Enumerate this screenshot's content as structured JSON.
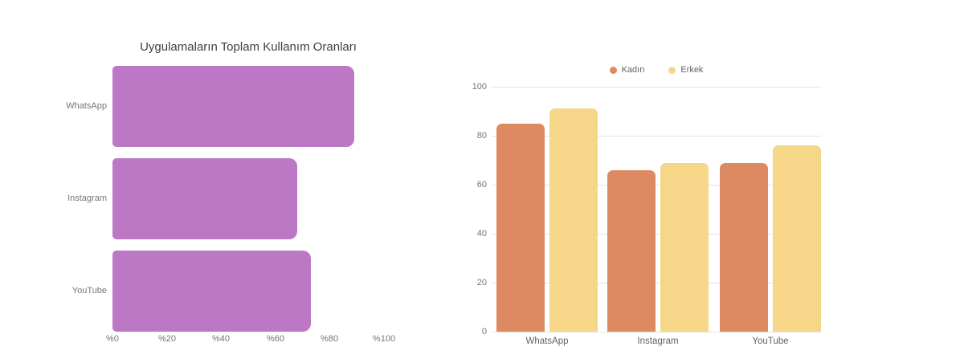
{
  "chart_data": [
    {
      "type": "bar",
      "orientation": "horizontal",
      "title": "Uygulamaların Toplam Kullanım Oranları",
      "categories": [
        "WhatsApp",
        "Instagram",
        "YouTube"
      ],
      "values": [
        89,
        68,
        73
      ],
      "unit": "percent",
      "x_tick_labels": [
        "%0",
        "%20",
        "%40",
        "%60",
        "%80",
        "%100"
      ],
      "xlim": [
        0,
        100
      ],
      "bar_color": "#bd78c5",
      "grid": false,
      "legend_position": "none"
    },
    {
      "type": "bar",
      "orientation": "vertical",
      "grouped": true,
      "categories": [
        "WhatsApp",
        "Instagram",
        "YouTube"
      ],
      "series": [
        {
          "name": "Kadın",
          "color": "#dd8a63",
          "values": [
            85,
            66,
            69
          ]
        },
        {
          "name": "Erkek",
          "color": "#f6d78a",
          "values": [
            91,
            69,
            76
          ]
        }
      ],
      "y_tick_labels": [
        "100",
        "80",
        "60",
        "40",
        "20",
        "0"
      ],
      "ylim": [
        0,
        100
      ],
      "grid": true,
      "legend_position": "top"
    }
  ],
  "colors": {
    "title_text": "#3c4043",
    "axis_text": "#757575",
    "legend_text": "#5f6368",
    "gridline": "#e3e3e3",
    "background": "#ffffff"
  }
}
